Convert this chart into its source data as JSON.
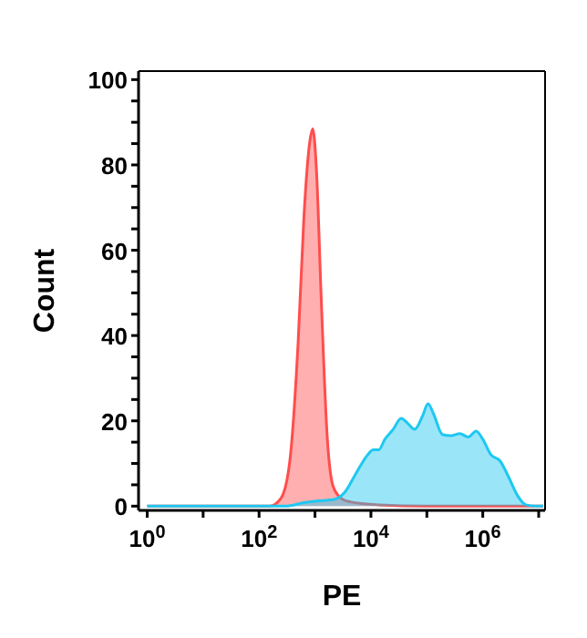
{
  "chart_data": {
    "type": "area",
    "xlabel": "PE",
    "ylabel": "Count",
    "log": "x",
    "xlim": [
      0.7,
      13000000
    ],
    "xticks": [
      {
        "value": 1,
        "label": "10$^{0}$"
      },
      {
        "value": 10,
        "label": null
      },
      {
        "value": 100,
        "label": "10$^{2}$"
      },
      {
        "value": 1000,
        "label": null
      },
      {
        "value": 10000,
        "label": "10$^{4}$"
      },
      {
        "value": 100000,
        "label": null
      },
      {
        "value": 1000000,
        "label": "10$^{6}$"
      },
      {
        "value": 10000000,
        "label": null
      }
    ],
    "ylim": [
      -1,
      102
    ],
    "yticks": [
      0,
      {
        "value": 5,
        "label": null
      },
      {
        "value": 10,
        "label": null
      },
      {
        "value": 15,
        "label": null
      },
      20,
      {
        "value": 25,
        "label": null
      },
      {
        "value": 30,
        "label": null
      },
      {
        "value": 35,
        "label": null
      },
      40,
      {
        "value": 45,
        "label": null
      },
      {
        "value": 50,
        "label": null
      },
      {
        "value": 55,
        "label": null
      },
      60,
      {
        "value": 65,
        "label": null
      },
      {
        "value": 70,
        "label": null
      },
      {
        "value": 75,
        "label": null
      },
      80,
      {
        "value": 85,
        "label": null
      },
      {
        "value": 90,
        "label": null
      },
      {
        "value": 95,
        "label": null
      },
      100
    ],
    "series": [
      {
        "color": "#ff4d4d",
        "x": [
          1,
          10,
          155,
          245,
          355,
          500,
          635,
          810,
          910,
          1070,
          1290,
          1650,
          2100,
          2950,
          4250,
          14000,
          100000,
          1000000,
          12000000
        ],
        "values": [
          0,
          0,
          0,
          1.8,
          10.6,
          38.5,
          68,
          85.6,
          88.5,
          78,
          49,
          16.5,
          4.7,
          1.8,
          1,
          0.3,
          0,
          0,
          0
        ]
      },
      {
        "color": "#1ec8f0",
        "x": [
          1,
          10,
          100,
          300,
          630,
          1290,
          2090,
          3390,
          5370,
          8710,
          11000,
          13800,
          17800,
          25000,
          34700,
          45700,
          60300,
          83000,
          105000,
          132000,
          190000,
          270000,
          390000,
          550000,
          760000,
          1000000,
          1410000,
          2040000,
          2880000,
          4170000,
          5900000,
          8500000,
          12000000
        ],
        "values": [
          0,
          0,
          0,
          0,
          0.8,
          1.3,
          1.5,
          3.2,
          7.6,
          12,
          13.2,
          13.2,
          15.7,
          18,
          20.6,
          19.4,
          18,
          21,
          24,
          21.6,
          16.8,
          16.5,
          17,
          16.2,
          17.6,
          15.7,
          12,
          10.6,
          6.9,
          2.5,
          0.3,
          0,
          0
        ]
      }
    ]
  }
}
